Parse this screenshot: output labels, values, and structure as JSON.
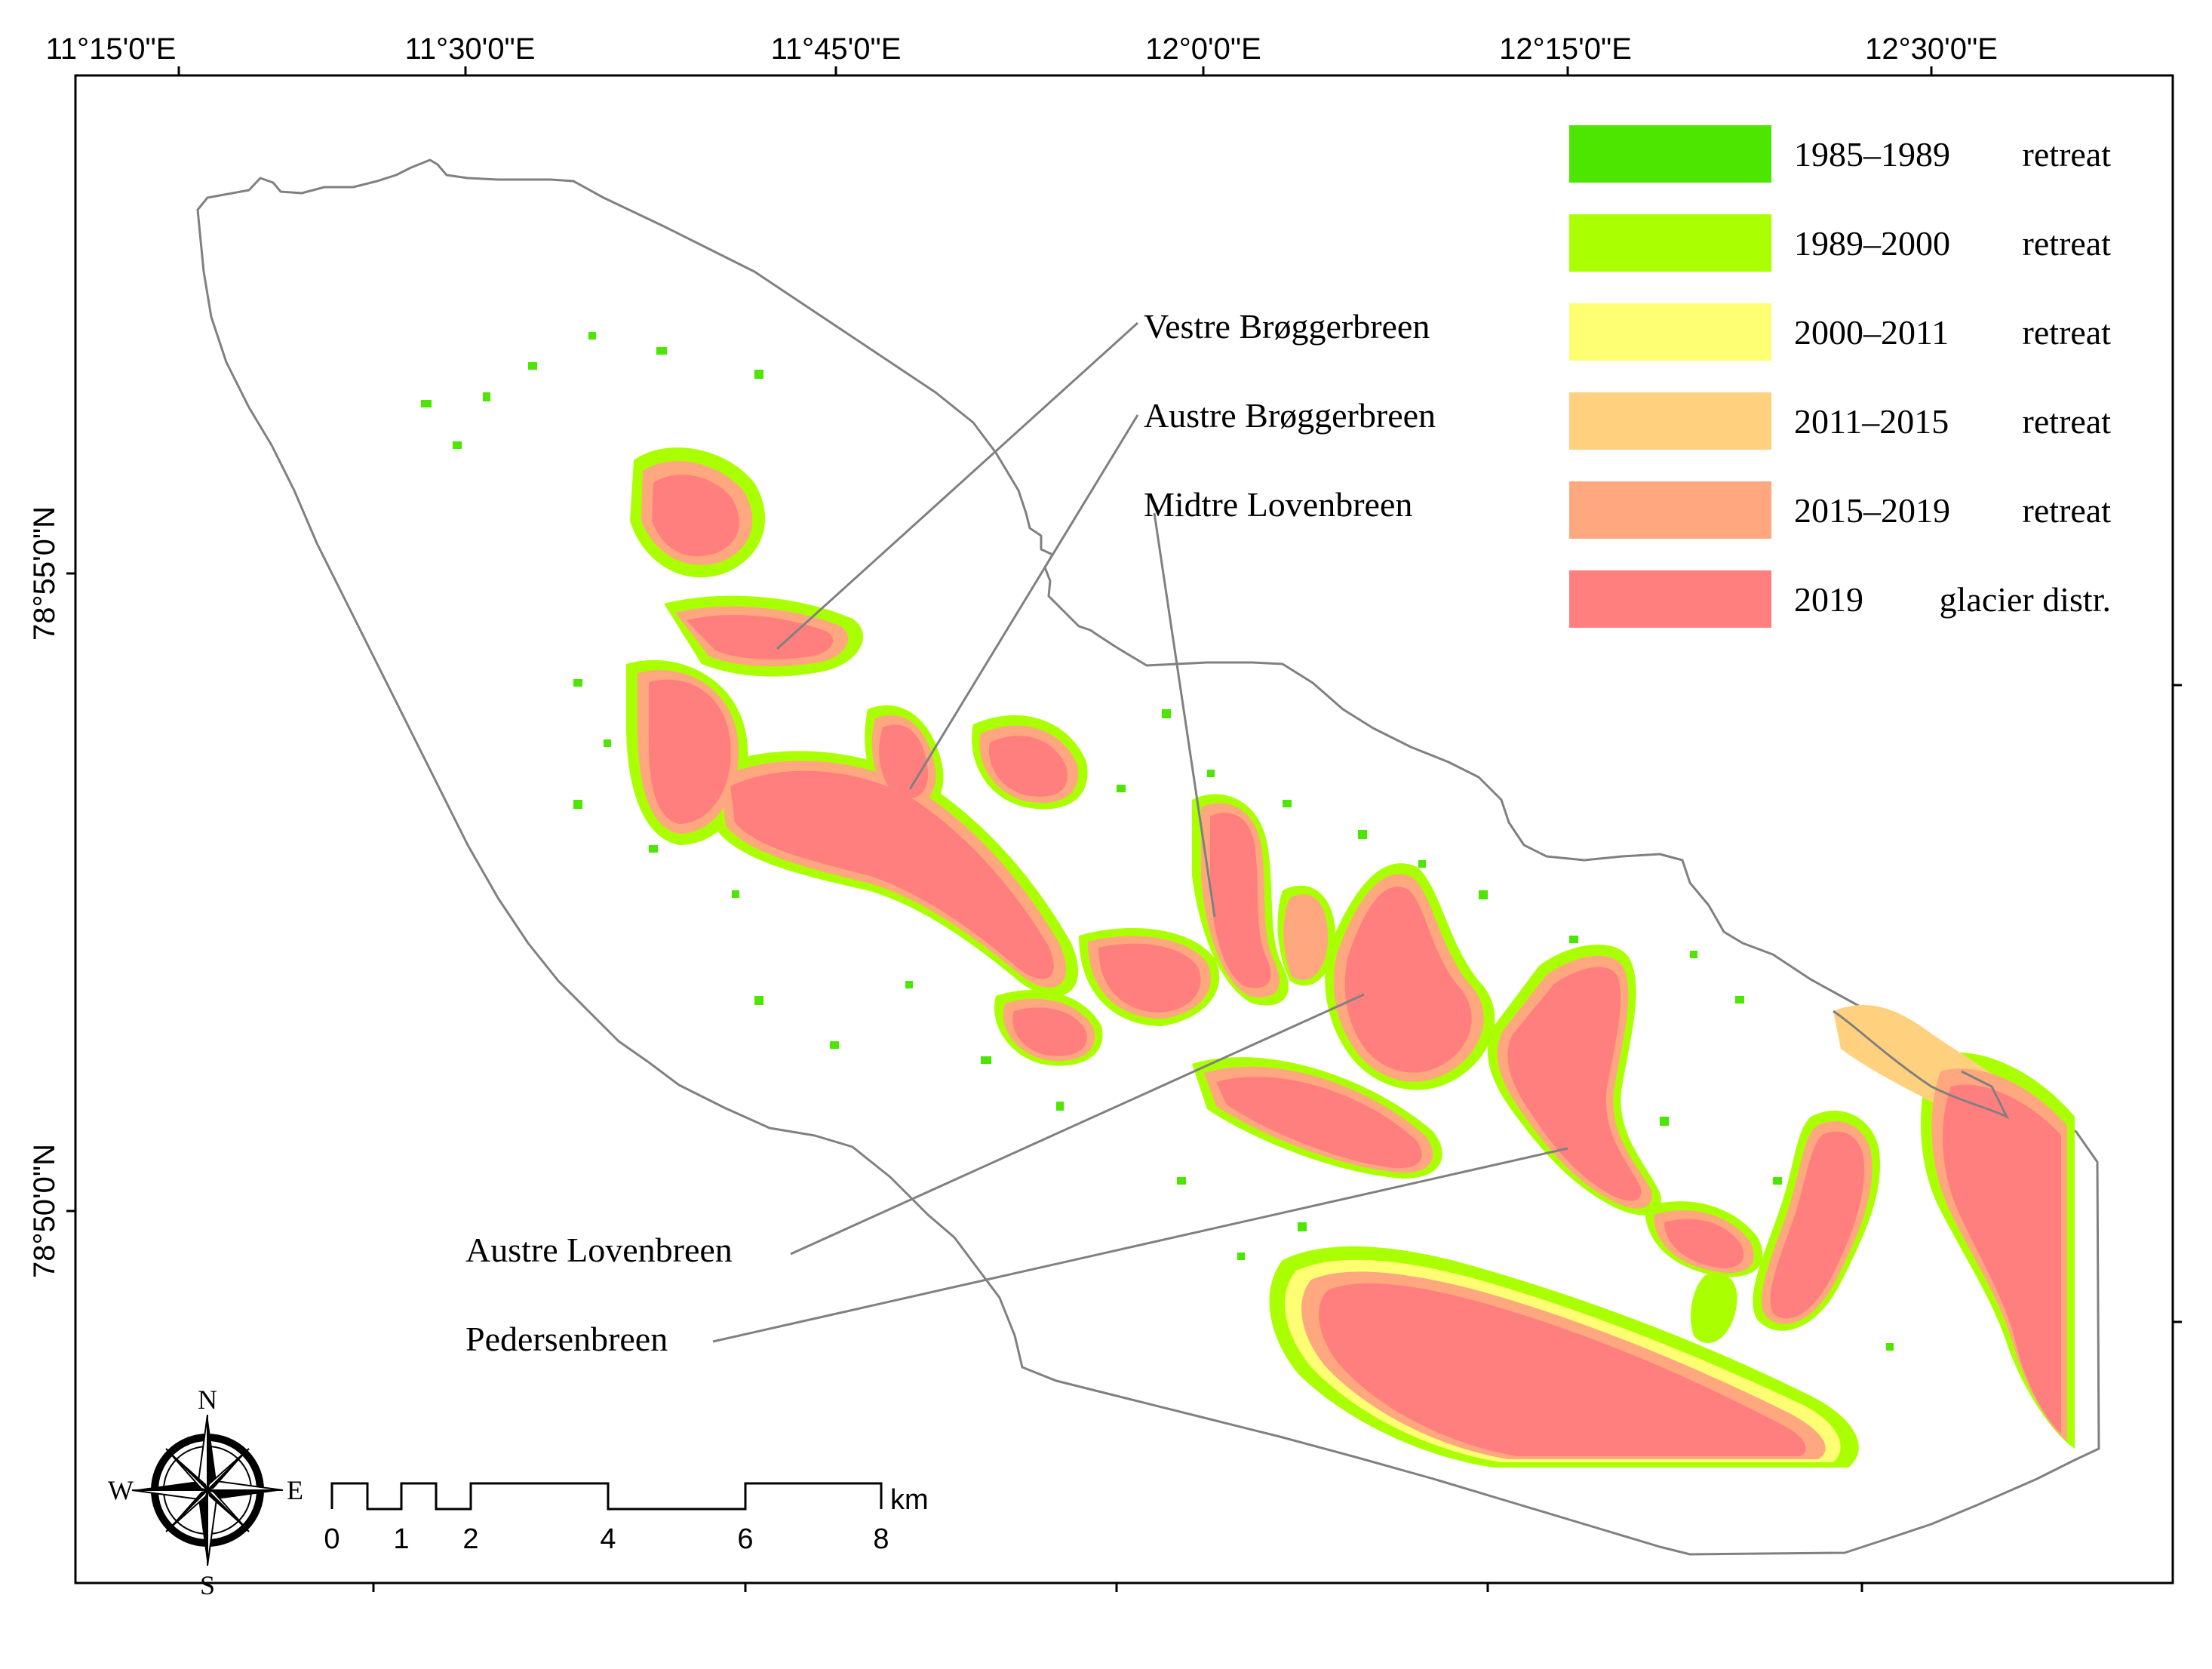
{
  "map": {
    "top_axis_labels": [
      "11°15'0\"E",
      "11°30'0\"E",
      "11°45'0\"E",
      "12°0'0\"E",
      "12°15'0\"E",
      "12°30'0\"E"
    ],
    "left_axis_labels": [
      "78°55'0\"N",
      "78°50'0\"N"
    ],
    "glaciers": [
      {
        "name": "Vestre Brøggerbreen"
      },
      {
        "name": "Austre Brøggerbreen"
      },
      {
        "name": "Midtre Lovenbreen"
      },
      {
        "name": "Austre Lovenbreen"
      },
      {
        "name": "Pedersenbreen"
      }
    ]
  },
  "legend": [
    {
      "years": "1985–1989",
      "label": "retreat",
      "color": "#4de600"
    },
    {
      "years": "1989–2000",
      "label": "retreat",
      "color": "#aaff00"
    },
    {
      "years": "2000–2011",
      "label": "retreat",
      "color": "#ffff73"
    },
    {
      "years": "2011–2015",
      "label": "retreat",
      "color": "#ffd17f"
    },
    {
      "years": "2015–2019",
      "label": "retreat",
      "color": "#ffa77f"
    },
    {
      "years": "2019",
      "label": "glacier distr.",
      "color": "#ff7f7f"
    }
  ],
  "compass": {
    "n": "N",
    "s": "S",
    "e": "E",
    "w": "W"
  },
  "scale_bar": {
    "ticks": [
      "0",
      "1",
      "2",
      "4",
      "6",
      "8"
    ],
    "unit": "km"
  }
}
